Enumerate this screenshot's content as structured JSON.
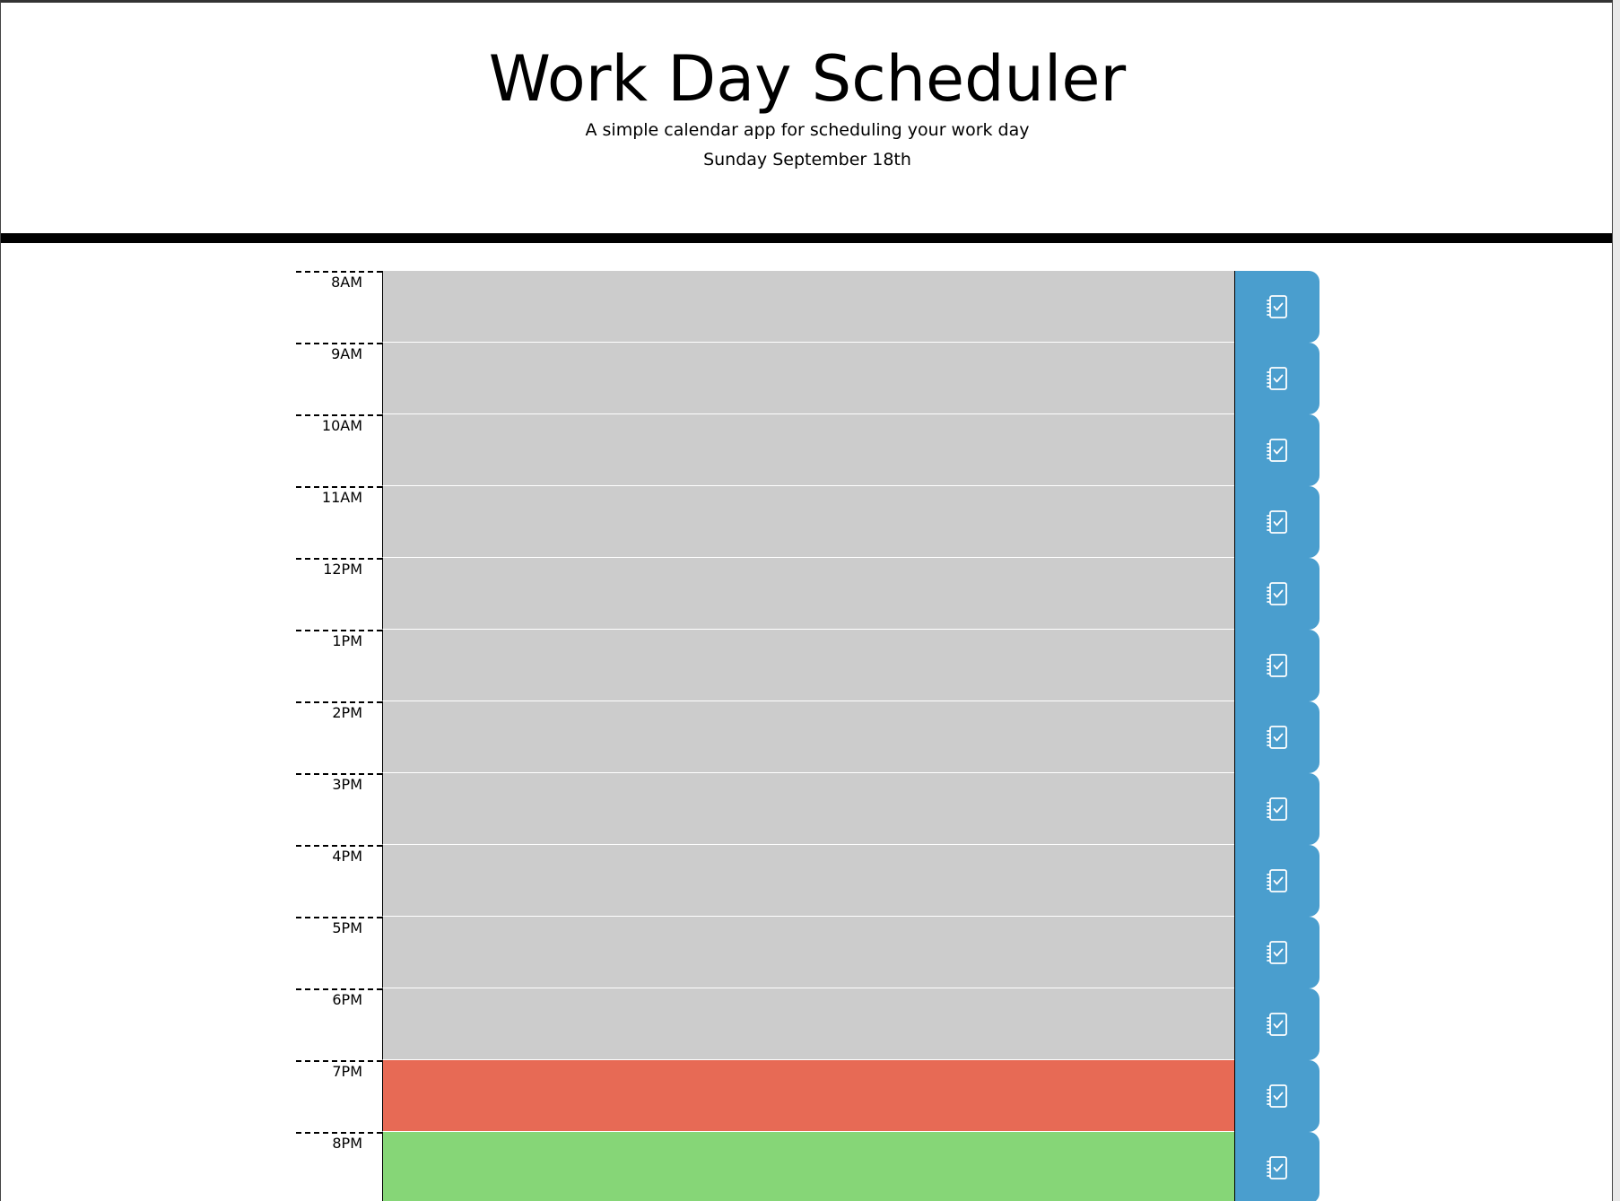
{
  "header": {
    "title": "Work Day Scheduler",
    "lead": "A simple calendar app for scheduling your work day",
    "current_date": "Sunday September 18th"
  },
  "colors": {
    "past": "#cccccc",
    "present": "#e76a55",
    "future": "#86d677",
    "save_button": "#4a9ece",
    "divider": "#000000"
  },
  "save_icon": "notebook-check-icon",
  "time_blocks": [
    {
      "hour": "8AM",
      "status": "past",
      "text": ""
    },
    {
      "hour": "9AM",
      "status": "past",
      "text": ""
    },
    {
      "hour": "10AM",
      "status": "past",
      "text": ""
    },
    {
      "hour": "11AM",
      "status": "past",
      "text": ""
    },
    {
      "hour": "12PM",
      "status": "past",
      "text": ""
    },
    {
      "hour": "1PM",
      "status": "past",
      "text": ""
    },
    {
      "hour": "2PM",
      "status": "past",
      "text": ""
    },
    {
      "hour": "3PM",
      "status": "past",
      "text": ""
    },
    {
      "hour": "4PM",
      "status": "past",
      "text": ""
    },
    {
      "hour": "5PM",
      "status": "past",
      "text": ""
    },
    {
      "hour": "6PM",
      "status": "past",
      "text": ""
    },
    {
      "hour": "7PM",
      "status": "present",
      "text": ""
    },
    {
      "hour": "8PM",
      "status": "future",
      "text": ""
    }
  ]
}
